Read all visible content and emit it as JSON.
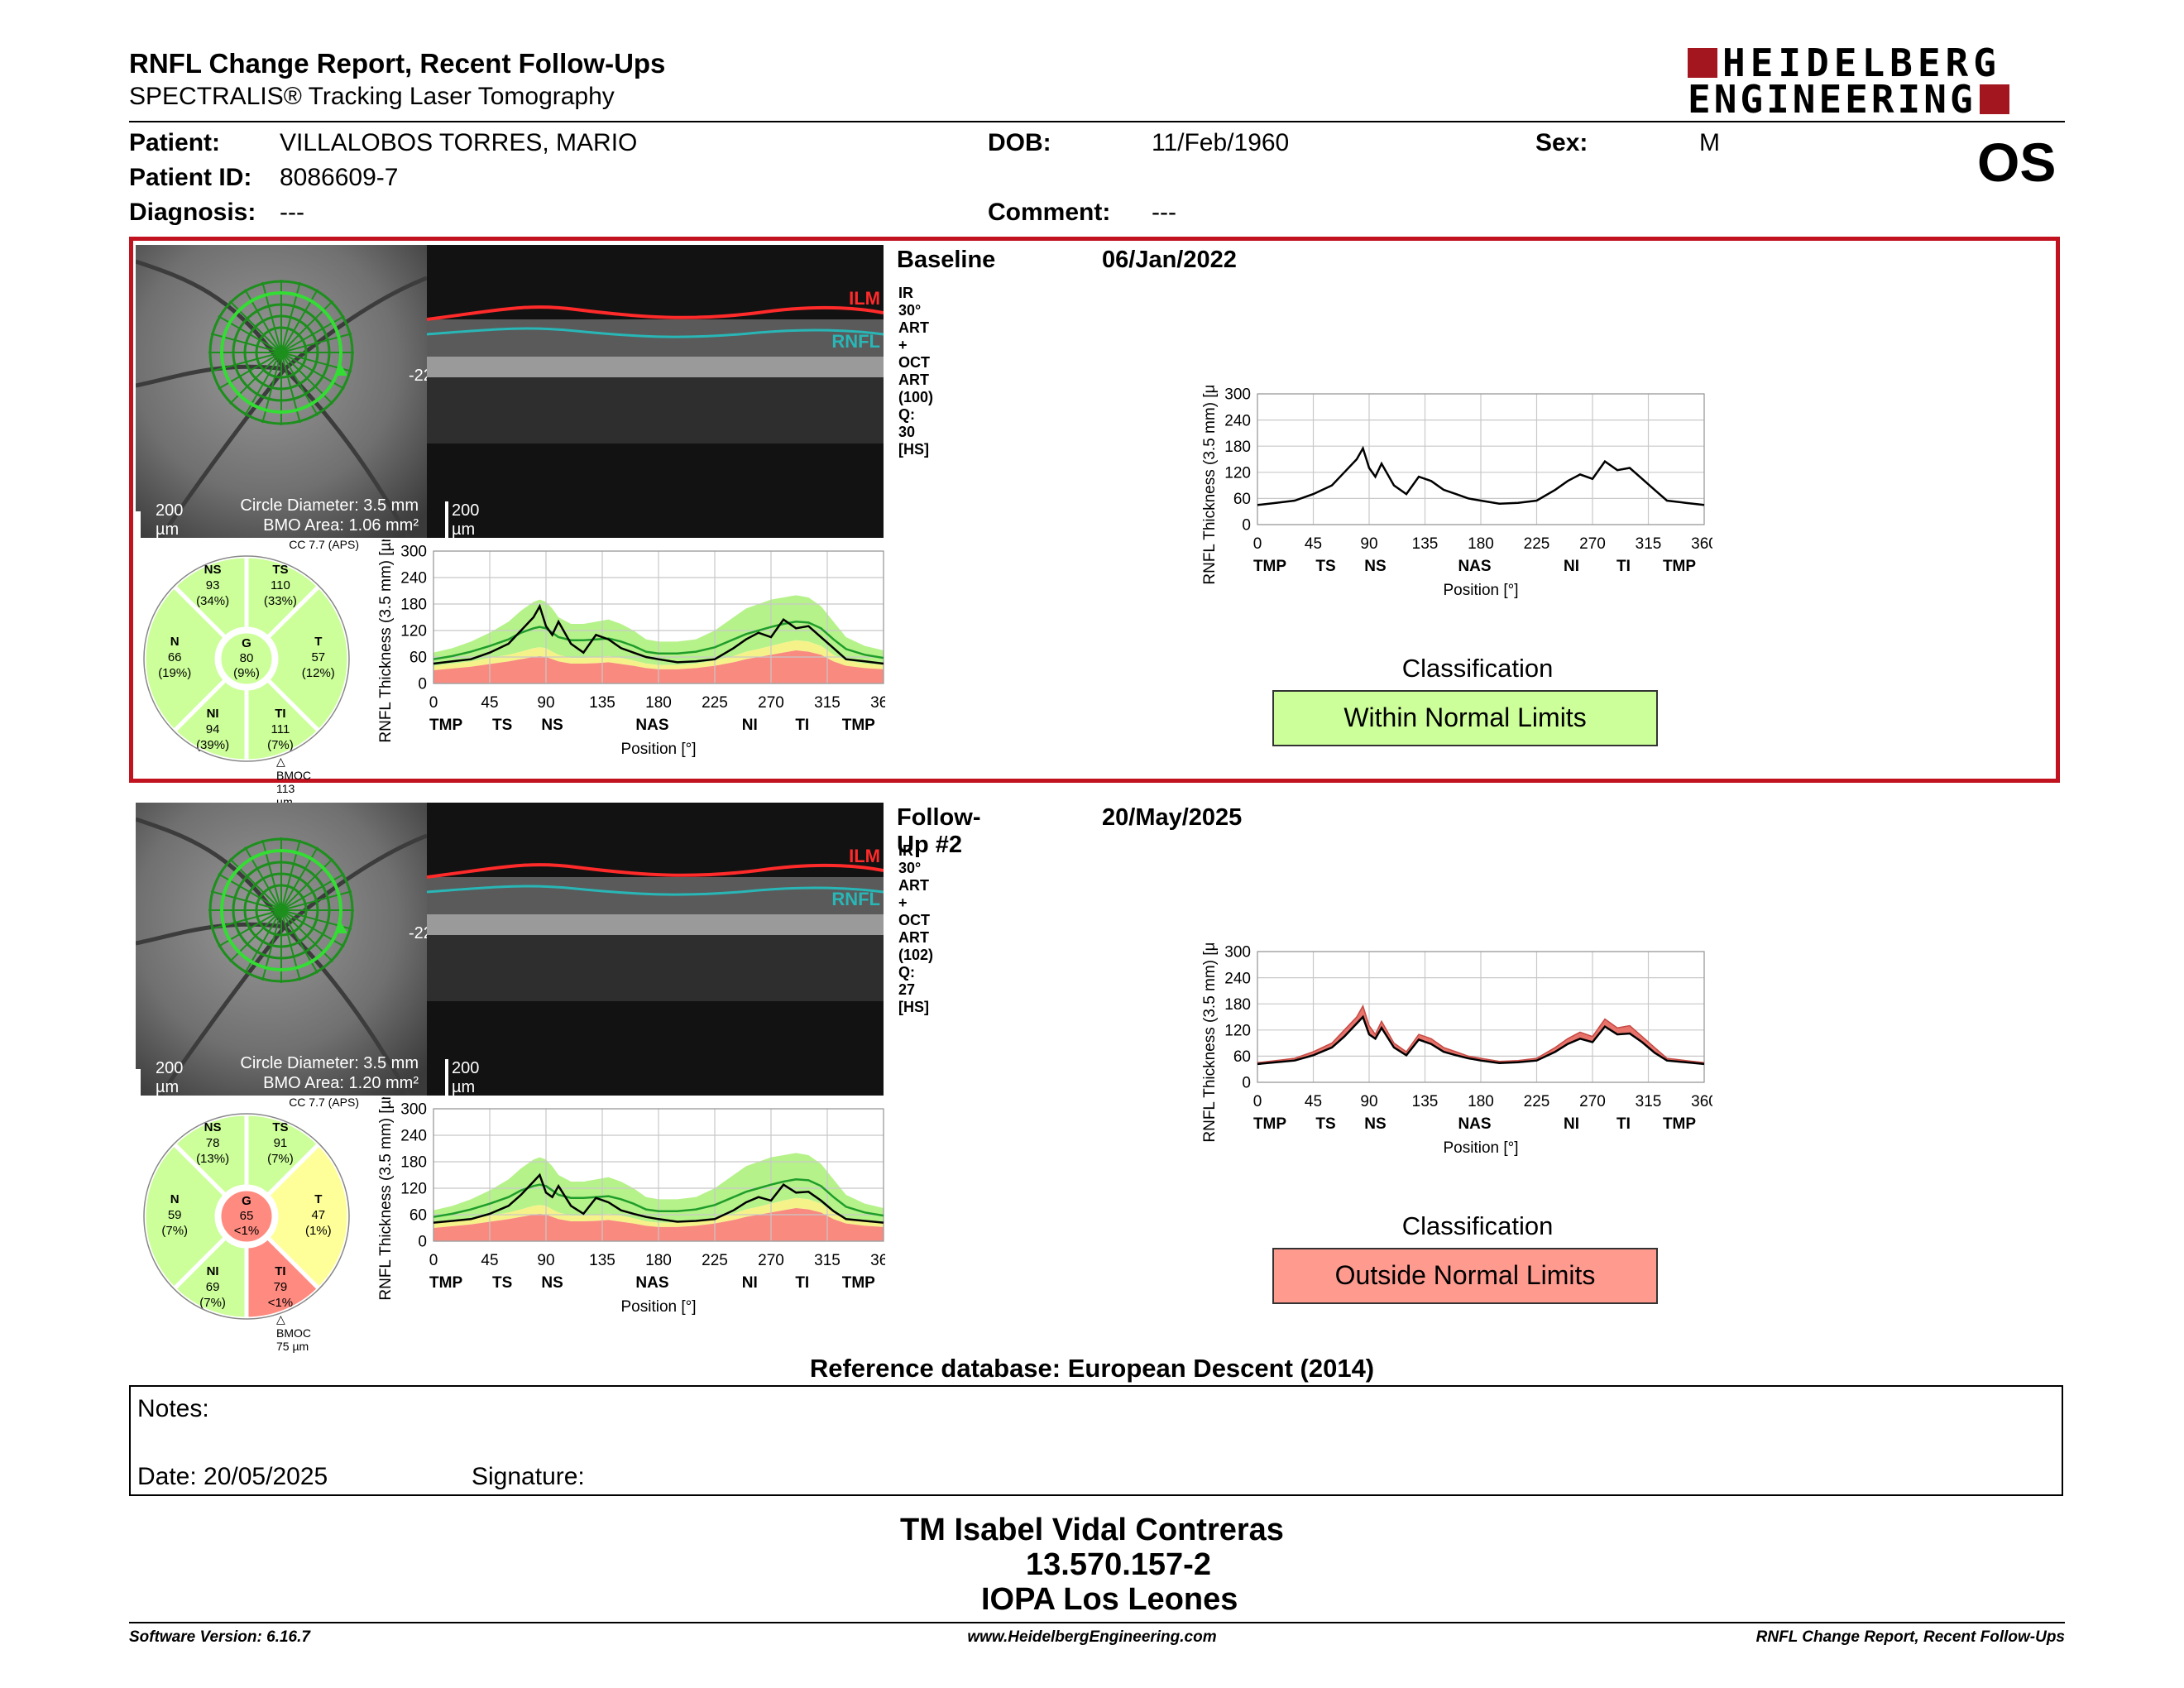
{
  "header": {
    "title": "RNFL Change Report, Recent Follow-Ups",
    "subtitle": "SPECTRALIS® Tracking Laser Tomography",
    "logo_line1": "HEIDELBERG",
    "logo_line2": "ENGINEERING",
    "eye": "OS"
  },
  "patient": {
    "patient_label": "Patient:",
    "patient_value": "VILLALOBOS TORRES, MARIO",
    "id_label": "Patient ID:",
    "id_value": "8086609-7",
    "diagnosis_label": "Diagnosis:",
    "diagnosis_value": "---",
    "dob_label": "DOB:",
    "dob_value": "11/Feb/1960",
    "comment_label": "Comment:",
    "comment_value": "---",
    "sex_label": "Sex:",
    "sex_value": "M"
  },
  "exams": [
    {
      "label": "Baseline",
      "date": "06/Jan/2022",
      "scan": "IR 30° ART + OCT ART (100) Q: 30 [HS]",
      "scale_ir": "200 µm",
      "circle": "Circle Diameter: 3.5 mm",
      "bmo": "BMO Area: 1.06 mm²",
      "scale_oct": "200 µm",
      "ilm": "ILM",
      "rnfl": "RNFL",
      "cc": "CC 7.7 (APS)",
      "bmoc": "BMOC 113 µm",
      "classification_title": "Classification",
      "classification": "Within Normal Limits",
      "classification_color": "#ccff99",
      "sectors": {
        "NS": {
          "name": "NS",
          "value": "93",
          "pct": "(34%)",
          "color": "#ccff99"
        },
        "TS": {
          "name": "TS",
          "value": "110",
          "pct": "(33%)",
          "color": "#ccff99"
        },
        "N": {
          "name": "N",
          "value": "66",
          "pct": "(19%)",
          "color": "#ccff99"
        },
        "G": {
          "name": "G",
          "value": "80",
          "pct": "(9%)",
          "color": "#ccff99"
        },
        "T": {
          "name": "T",
          "value": "57",
          "pct": "(12%)",
          "color": "#ccff99"
        },
        "NI": {
          "name": "NI",
          "value": "94",
          "pct": "(39%)",
          "color": "#ccff99"
        },
        "TI": {
          "name": "TI",
          "value": "111",
          "pct": "(7%)",
          "color": "#ccff99"
        }
      }
    },
    {
      "label": "Follow-Up #2",
      "date": "20/May/2025",
      "scan": "IR 30° ART + OCT ART (102) Q: 27 [HS]",
      "scale_ir": "200 µm",
      "circle": "Circle Diameter: 3.5 mm",
      "bmo": "BMO Area: 1.20 mm²",
      "scale_oct": "200 µm",
      "ilm": "ILM",
      "rnfl": "RNFL",
      "cc": "CC 7.7 (APS)",
      "bmoc": "BMOC 75 µm",
      "classification_title": "Classification",
      "classification": "Outside Normal Limits",
      "classification_color": "#ff9a8f",
      "sectors": {
        "NS": {
          "name": "NS",
          "value": "78",
          "pct": "(13%)",
          "color": "#ccff99"
        },
        "TS": {
          "name": "TS",
          "value": "91",
          "pct": "(7%)",
          "color": "#ccff99"
        },
        "N": {
          "name": "N",
          "value": "59",
          "pct": "(7%)",
          "color": "#ccff99"
        },
        "G": {
          "name": "G",
          "value": "65",
          "pct": "<1%",
          "color": "#ff8a80"
        },
        "T": {
          "name": "T",
          "value": "47",
          "pct": "(1%)",
          "color": "#ffff99"
        },
        "NI": {
          "name": "NI",
          "value": "69",
          "pct": "(7%)",
          "color": "#ccff99"
        },
        "TI": {
          "name": "TI",
          "value": "79",
          "pct": "<1%",
          "color": "#ff8a80"
        }
      }
    }
  ],
  "chart_data": {
    "type": "line",
    "ylabel": "RNFL Thickness (3.5 mm) [µm]",
    "xlabel": "Position [°]",
    "xlim": [
      0,
      360
    ],
    "ylim": [
      0,
      300
    ],
    "x_ticks": [
      "0",
      "45",
      "90",
      "135",
      "180",
      "225",
      "270",
      "315",
      "360"
    ],
    "y_ticks": [
      "300",
      "240",
      "180",
      "120",
      "60",
      "0"
    ],
    "sector_labels": [
      "TMP",
      "TS",
      "NS",
      "NAS",
      "NI",
      "TI",
      "TMP"
    ],
    "sector_positions": [
      10,
      55,
      95,
      175,
      253,
      295,
      340
    ],
    "x": [
      0,
      15,
      30,
      45,
      60,
      70,
      80,
      85,
      90,
      95,
      100,
      110,
      120,
      130,
      140,
      150,
      160,
      170,
      180,
      195,
      210,
      225,
      240,
      250,
      260,
      270,
      280,
      290,
      300,
      310,
      320,
      330,
      345,
      360
    ],
    "normal_upper": [
      70,
      80,
      95,
      115,
      140,
      165,
      185,
      190,
      185,
      170,
      150,
      135,
      135,
      140,
      145,
      135,
      120,
      100,
      95,
      95,
      100,
      120,
      150,
      170,
      180,
      190,
      195,
      200,
      195,
      175,
      140,
      105,
      85,
      75
    ],
    "normal_mean": [
      55,
      62,
      72,
      85,
      100,
      115,
      125,
      128,
      125,
      115,
      105,
      98,
      98,
      100,
      102,
      95,
      85,
      72,
      68,
      68,
      72,
      82,
      100,
      112,
      120,
      128,
      135,
      140,
      138,
      125,
      100,
      78,
      65,
      58
    ],
    "borderline": [
      40,
      45,
      50,
      58,
      65,
      72,
      80,
      82,
      80,
      72,
      65,
      58,
      58,
      60,
      62,
      58,
      52,
      45,
      42,
      42,
      45,
      52,
      62,
      72,
      78,
      85,
      92,
      98,
      95,
      85,
      65,
      52,
      45,
      42
    ],
    "outside": [
      30,
      34,
      38,
      44,
      50,
      55,
      60,
      62,
      60,
      55,
      50,
      45,
      45,
      46,
      48,
      44,
      40,
      35,
      32,
      32,
      35,
      40,
      48,
      55,
      60,
      65,
      70,
      75,
      72,
      65,
      50,
      40,
      35,
      32
    ],
    "series": [
      {
        "name": "Baseline",
        "values": [
          45,
          50,
          55,
          70,
          90,
          120,
          150,
          175,
          130,
          110,
          140,
          90,
          70,
          110,
          100,
          80,
          70,
          60,
          55,
          48,
          50,
          55,
          80,
          100,
          115,
          105,
          145,
          125,
          130,
          105,
          80,
          55,
          50,
          45
        ]
      },
      {
        "name": "Follow-Up #2",
        "values": [
          42,
          46,
          50,
          62,
          80,
          105,
          135,
          150,
          110,
          100,
          125,
          80,
          62,
          98,
          88,
          70,
          62,
          55,
          50,
          44,
          46,
          50,
          70,
          88,
          100,
          92,
          128,
          110,
          112,
          92,
          68,
          50,
          46,
          42
        ]
      }
    ]
  },
  "footer": {
    "refdb": "Reference database: European Descent (2014)",
    "notes_label": "Notes:",
    "date_label": "Date: 20/05/2025",
    "signature_label": "Signature:",
    "name": "TM Isabel Vidal Contreras",
    "rut": "13.570.157-2",
    "org": "IOPA Los Leones",
    "software": "Software Version: 6.16.7",
    "website": "www.HeidelbergEngineering.com",
    "report_name": "RNFL Change Report, Recent Follow-Ups"
  }
}
